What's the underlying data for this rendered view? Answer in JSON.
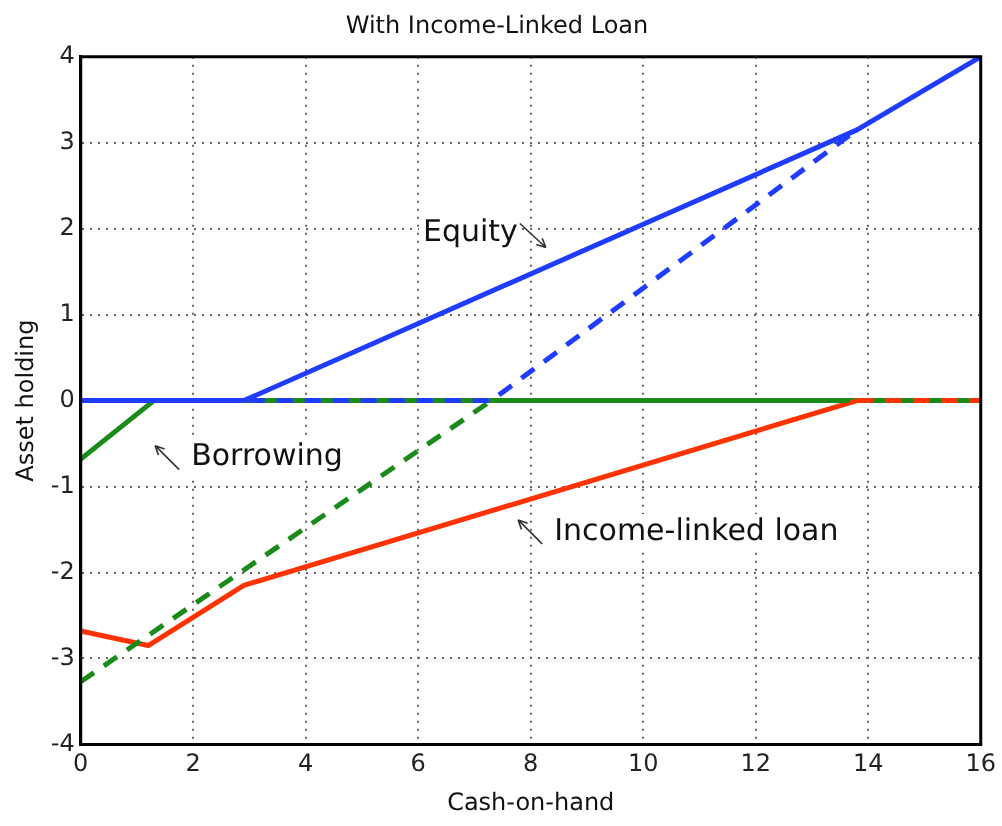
{
  "chart_data": {
    "type": "line",
    "title": "With Income-Linked Loan",
    "xlabel": "Cash-on-hand",
    "ylabel": "Asset holding",
    "xlim": [
      0,
      16
    ],
    "xticks": [
      0,
      2,
      4,
      6,
      8,
      10,
      12,
      14,
      16
    ],
    "ylim": [
      -4,
      4
    ],
    "yticks": [
      -4,
      -3,
      -2,
      -1,
      0,
      1,
      2,
      3,
      4
    ],
    "grid": true,
    "legend": false,
    "marker": "none",
    "series": [
      {
        "color": "#1f3cff",
        "line_style": "dashed",
        "x": [
          0,
          7.3,
          13.8
        ],
        "values": [
          0,
          0,
          3.15
        ]
      },
      {
        "color": "#ff3300",
        "line_style": "dashed",
        "x": [
          13.8,
          16
        ],
        "values": [
          0,
          0
        ]
      },
      {
        "color": "#1a8a1a",
        "line_style": "dashed",
        "x": [
          0,
          7.3,
          16
        ],
        "values": [
          -3.27,
          0,
          0
        ]
      },
      {
        "color": "#1f3cff",
        "line_style": "solid",
        "x": [
          0,
          2.9,
          13.8,
          16
        ],
        "values": [
          0,
          0,
          3.15,
          4
        ]
      },
      {
        "color": "#ff3300",
        "line_style": "solid",
        "x": [
          0,
          1.2,
          2.9,
          13.8
        ],
        "values": [
          -2.68,
          -2.85,
          -2.15,
          0
        ]
      },
      {
        "color": "#1a8a1a",
        "line_style": "solid",
        "x": [
          0,
          1.3,
          16
        ],
        "values": [
          -0.68,
          0,
          0
        ]
      }
    ],
    "annotations": [
      "Equity",
      "Borrowing",
      "Income-linked loan"
    ]
  }
}
